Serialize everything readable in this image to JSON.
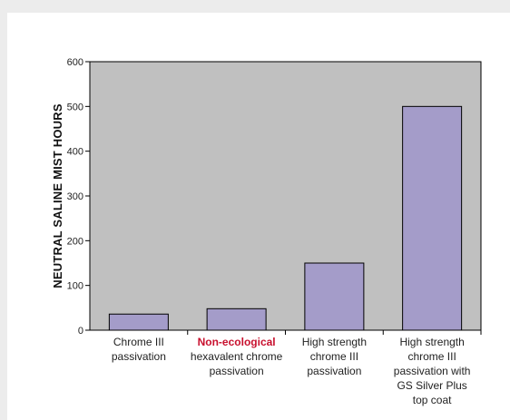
{
  "chart_data": {
    "type": "bar",
    "title": "",
    "xlabel": "",
    "ylabel": "NEUTRAL SALINE MIST HOURS",
    "ylim": [
      0,
      600
    ],
    "yticks": [
      0,
      100,
      200,
      300,
      400,
      500,
      600
    ],
    "ytick_labels": [
      "0",
      "100",
      "200",
      "300",
      "400",
      "500",
      "600"
    ],
    "grid": false,
    "plot_background": "#c0c0c0",
    "bar_color": "#a49cc9",
    "highlight_color": "#c8102e",
    "categories": [
      {
        "lines": [
          [
            {
              "text": "Chrome III",
              "highlight": false
            }
          ],
          [
            {
              "text": "passivation",
              "highlight": false
            }
          ]
        ]
      },
      {
        "lines": [
          [
            {
              "text": "Non-ecological",
              "highlight": true
            }
          ],
          [
            {
              "text": "hexavalent chrome",
              "highlight": false
            }
          ],
          [
            {
              "text": "passivation",
              "highlight": false
            }
          ]
        ]
      },
      {
        "lines": [
          [
            {
              "text": "High strength",
              "highlight": false
            }
          ],
          [
            {
              "text": "chrome III",
              "highlight": false
            }
          ],
          [
            {
              "text": "passivation",
              "highlight": false
            }
          ]
        ]
      },
      {
        "lines": [
          [
            {
              "text": "High strength",
              "highlight": false
            }
          ],
          [
            {
              "text": "chrome III",
              "highlight": false
            }
          ],
          [
            {
              "text": "passivation with",
              "highlight": false
            }
          ],
          [
            {
              "text": "GS Silver Plus",
              "highlight": false
            }
          ],
          [
            {
              "text": "top coat",
              "highlight": false
            }
          ]
        ]
      }
    ],
    "values": [
      36,
      48,
      150,
      500
    ]
  }
}
